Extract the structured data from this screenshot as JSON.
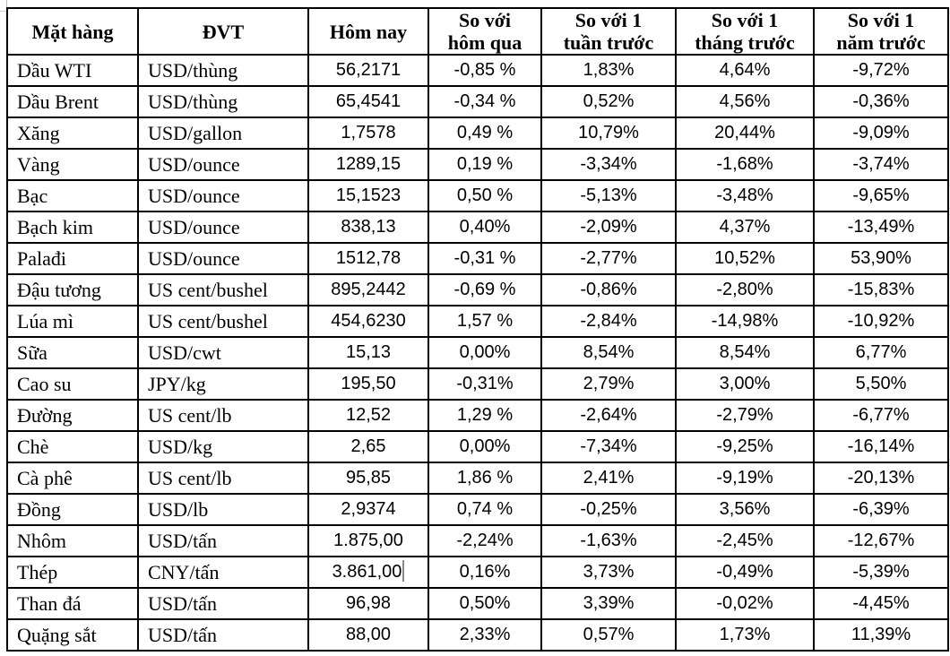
{
  "table": {
    "headers": [
      [
        "Mặt hàng"
      ],
      [
        "ĐVT"
      ],
      [
        "Hôm nay"
      ],
      [
        "So với",
        "hôm qua"
      ],
      [
        "So với 1",
        "tuần trước"
      ],
      [
        "So với 1",
        "tháng trước"
      ],
      [
        "So với 1",
        "năm trước"
      ]
    ],
    "rows": [
      {
        "name": "Dầu WTI",
        "unit": "USD/thùng",
        "today": "56,2171",
        "vs_yesterday": "-0,85 %",
        "vs_week": "1,83%",
        "vs_month": "4,64%",
        "vs_year": "-9,72%"
      },
      {
        "name": "Dầu Brent",
        "unit": "USD/thùng",
        "today": "65,4541",
        "vs_yesterday": "-0,34 %",
        "vs_week": "0,52%",
        "vs_month": "4,56%",
        "vs_year": "-0,36%"
      },
      {
        "name": "Xăng",
        "unit": "USD/gallon",
        "today": "1,7578",
        "vs_yesterday": "0,49 %",
        "vs_week": "10,79%",
        "vs_month": "20,44%",
        "vs_year": "-9,09%"
      },
      {
        "name": "Vàng",
        "unit": "USD/ounce",
        "today": "1289,15",
        "vs_yesterday": "0,19 %",
        "vs_week": "-3,34%",
        "vs_month": "-1,68%",
        "vs_year": "-3,74%"
      },
      {
        "name": "Bạc",
        "unit": "USD/ounce",
        "today": "15,1523",
        "vs_yesterday": "0,50 %",
        "vs_week": "-5,13%",
        "vs_month": "-3,48%",
        "vs_year": "-9,65%"
      },
      {
        "name": "Bạch kim",
        "unit": "USD/ounce",
        "today": "838,13",
        "vs_yesterday": "0,40%",
        "vs_week": "-2,09%",
        "vs_month": "4,37%",
        "vs_year": "-13,49%"
      },
      {
        "name": "Palađi",
        "unit": "USD/ounce",
        "today": "1512,78",
        "vs_yesterday": "-0,31 %",
        "vs_week": "-2,77%",
        "vs_month": "10,52%",
        "vs_year": "53,90%"
      },
      {
        "name": "Đậu tương",
        "unit": "US cent/bushel",
        "today": "895,2442",
        "vs_yesterday": "-0,69 %",
        "vs_week": "-0,86%",
        "vs_month": "-2,80%",
        "vs_year": "-15,83%"
      },
      {
        "name": "Lúa mì",
        "unit": "US cent/bushel",
        "today": "454,6230",
        "vs_yesterday": "1,57 %",
        "vs_week": "-2,84%",
        "vs_month": "-14,98%",
        "vs_year": "-10,92%"
      },
      {
        "name": "Sữa",
        "unit": "USD/cwt",
        "today": "15,13",
        "vs_yesterday": "0,00%",
        "vs_week": "8,54%",
        "vs_month": "8,54%",
        "vs_year": "6,77%"
      },
      {
        "name": "Cao su",
        "unit": "JPY/kg",
        "today": "195,50",
        "vs_yesterday": "-0,31%",
        "vs_week": "2,79%",
        "vs_month": "3,00%",
        "vs_year": "5,50%"
      },
      {
        "name": "Đường",
        "unit": "US cent/lb",
        "today": "12,52",
        "vs_yesterday": "1,29 %",
        "vs_week": "-2,64%",
        "vs_month": "-2,79%",
        "vs_year": "-6,77%"
      },
      {
        "name": "Chè",
        "unit": "USD/kg",
        "today": "2,65",
        "vs_yesterday": "0,00%",
        "vs_week": "-7,34%",
        "vs_month": "-9,25%",
        "vs_year": "-16,14%"
      },
      {
        "name": "Cà phê",
        "unit": "US cent/lb",
        "today": "95,85",
        "vs_yesterday": "1,86 %",
        "vs_week": "2,41%",
        "vs_month": "-9,19%",
        "vs_year": "-20,13%"
      },
      {
        "name": "Đồng",
        "unit": "USD/lb",
        "today": "2,9374",
        "vs_yesterday": "0,74 %",
        "vs_week": "-0,25%",
        "vs_month": "3,56%",
        "vs_year": "-6,39%"
      },
      {
        "name": "Nhôm",
        "unit": "USD/tấn",
        "today": "1.875,00",
        "vs_yesterday": "-2,24%",
        "vs_week": "-1,63%",
        "vs_month": "-2,45%",
        "vs_year": "-12,67%"
      },
      {
        "name": "Thép",
        "unit": "CNY/tấn",
        "today": "3.861,00",
        "vs_yesterday": "0,16%",
        "vs_week": "3,73%",
        "vs_month": "-0,49%",
        "vs_year": "-5,39%"
      },
      {
        "name": "Than đá",
        "unit": "USD/tấn",
        "today": "96,98",
        "vs_yesterday": "0,50%",
        "vs_week": "3,39%",
        "vs_month": "-0,02%",
        "vs_year": "-4,45%"
      },
      {
        "name": "Quặng sắt",
        "unit": "USD/tấn",
        "today": "88,00",
        "vs_yesterday": "2,33%",
        "vs_week": "0,57%",
        "vs_month": "1,73%",
        "vs_year": "11,39%"
      }
    ],
    "text_cursor": {
      "row_index": 16,
      "column": "today"
    },
    "colors": {
      "border": "#000000",
      "text": "#000000",
      "background": "#ffffff"
    }
  }
}
